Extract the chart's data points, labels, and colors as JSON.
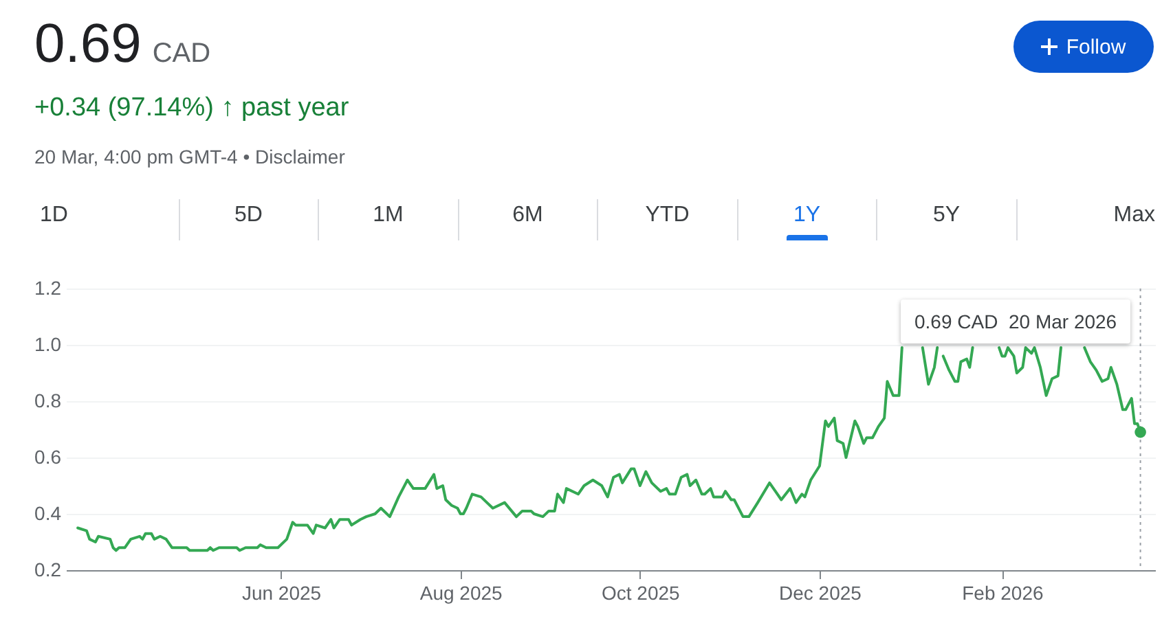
{
  "chart_data": {
    "type": "line",
    "title": "0.69 CAD",
    "subtitle": "+0.34 (97.14%) ↑ past year",
    "annotations": [
      "20 Mar, 4:00 pm GMT-4 • Disclaimer",
      "1D",
      "5D",
      "1M",
      "6M",
      "YTD",
      "1Y",
      "5Y",
      "Max",
      "Follow",
      "0.69 CAD  20 Mar 2026"
    ],
    "x": [
      "2025-03-24",
      "2025-03-27",
      "2025-03-28",
      "2025-03-30",
      "2025-03-31",
      "2025-04-04",
      "2025-04-05",
      "2025-04-06",
      "2025-04-07",
      "2025-04-09",
      "2025-04-11",
      "2025-04-14",
      "2025-04-15",
      "2025-04-16",
      "2025-04-18",
      "2025-04-19",
      "2025-04-21",
      "2025-04-23",
      "2025-04-25",
      "2025-04-30",
      "2025-05-01",
      "2025-05-07",
      "2025-05-08",
      "2025-05-09",
      "2025-05-11",
      "2025-05-17",
      "2025-05-18",
      "2025-05-20",
      "2025-05-24",
      "2025-05-25",
      "2025-05-27",
      "2025-05-31",
      "2025-06-03",
      "2025-06-05",
      "2025-06-06",
      "2025-06-10",
      "2025-06-12",
      "2025-06-13",
      "2025-06-16",
      "2025-06-18",
      "2025-06-19",
      "2025-06-21",
      "2025-06-24",
      "2025-06-25",
      "2025-06-28",
      "2025-06-30",
      "2025-07-03",
      "2025-07-05",
      "2025-07-08",
      "2025-07-11",
      "2025-07-14",
      "2025-07-16",
      "2025-07-20",
      "2025-07-23",
      "2025-07-24",
      "2025-07-26",
      "2025-07-27",
      "2025-07-29",
      "2025-07-31",
      "2025-08-01",
      "2025-08-02",
      "2025-08-03",
      "2025-08-05",
      "2025-08-08",
      "2025-08-10",
      "2025-08-12",
      "2025-08-16",
      "2025-08-20",
      "2025-08-22",
      "2025-08-25",
      "2025-08-26",
      "2025-08-29",
      "2025-08-31",
      "2025-09-02",
      "2025-09-03",
      "2025-09-05",
      "2025-09-06",
      "2025-09-10",
      "2025-09-12",
      "2025-09-15",
      "2025-09-18",
      "2025-09-20",
      "2025-09-22",
      "2025-09-24",
      "2025-09-25",
      "2025-09-28",
      "2025-09-29",
      "2025-10-01",
      "2025-10-03",
      "2025-10-05",
      "2025-10-08",
      "2025-10-10",
      "2025-10-11",
      "2025-10-13",
      "2025-10-15",
      "2025-10-17",
      "2025-10-18",
      "2025-10-20",
      "2025-10-22",
      "2025-10-23",
      "2025-10-25",
      "2025-10-26",
      "2025-10-29",
      "2025-10-30",
      "2025-11-01",
      "2025-11-02",
      "2025-11-05",
      "2025-11-07",
      "2025-11-10",
      "2025-11-14",
      "2025-11-16",
      "2025-11-18",
      "2025-11-21",
      "2025-11-23",
      "2025-11-25",
      "2025-11-26",
      "2025-11-28",
      "2025-12-01",
      "2025-12-03",
      "2025-12-04",
      "2025-12-06",
      "2025-12-07",
      "2025-12-09",
      "2025-12-10",
      "2025-12-13",
      "2025-12-14",
      "2025-12-16",
      "2025-12-17",
      "2025-12-19",
      "2025-12-21",
      "2025-12-23",
      "2025-12-24",
      "2025-12-26",
      "2025-12-28",
      "2025-12-29",
      "2025-12-31",
      "2026-01-05",
      "2026-01-07",
      "2026-01-09",
      "2026-01-10",
      "2026-01-11",
      "2026-01-12",
      "2026-01-14",
      "2026-01-16",
      "2026-01-17",
      "2026-01-18",
      "2026-01-20",
      "2026-01-21",
      "2026-01-22",
      "2026-01-26",
      "2026-01-31",
      "2026-02-01",
      "2026-02-02",
      "2026-02-03",
      "2026-02-05",
      "2026-02-06",
      "2026-02-08",
      "2026-02-09",
      "2026-02-11",
      "2026-02-12",
      "2026-02-14",
      "2026-02-16",
      "2026-02-18",
      "2026-02-20",
      "2026-02-21",
      "2026-02-25",
      "2026-03-01",
      "2026-03-03",
      "2026-03-05",
      "2026-03-07",
      "2026-03-09",
      "2026-03-10",
      "2026-03-12",
      "2026-03-14",
      "2026-03-15",
      "2026-03-17",
      "2026-03-18",
      "2026-03-19",
      "2026-03-20"
    ],
    "series": [
      {
        "color": "#34a853",
        "values": [
          0.35,
          0.34,
          0.31,
          0.3,
          0.32,
          0.31,
          0.28,
          0.27,
          0.28,
          0.28,
          0.31,
          0.32,
          0.31,
          0.33,
          0.33,
          0.31,
          0.32,
          0.31,
          0.28,
          0.28,
          0.27,
          0.27,
          0.28,
          0.27,
          0.28,
          0.28,
          0.27,
          0.28,
          0.28,
          0.29,
          0.28,
          0.28,
          0.31,
          0.37,
          0.36,
          0.36,
          0.33,
          0.36,
          0.35,
          0.38,
          0.35,
          0.38,
          0.38,
          0.36,
          0.38,
          0.39,
          0.4,
          0.42,
          0.39,
          0.46,
          0.52,
          0.49,
          0.49,
          0.54,
          0.49,
          0.5,
          0.45,
          0.43,
          0.42,
          0.4,
          0.4,
          0.42,
          0.47,
          0.46,
          0.44,
          0.42,
          0.44,
          0.39,
          0.41,
          0.41,
          0.4,
          0.39,
          0.41,
          0.41,
          0.47,
          0.44,
          0.49,
          0.47,
          0.5,
          0.52,
          0.5,
          0.46,
          0.53,
          0.54,
          0.51,
          0.56,
          0.56,
          0.5,
          0.55,
          0.51,
          0.48,
          0.49,
          0.47,
          0.47,
          0.53,
          0.54,
          0.5,
          0.52,
          0.47,
          0.47,
          0.49,
          0.46,
          0.46,
          0.48,
          0.45,
          0.45,
          0.39,
          0.39,
          0.44,
          0.51,
          0.48,
          0.45,
          0.49,
          0.44,
          0.47,
          0.46,
          0.52,
          0.57,
          0.73,
          0.71,
          0.74,
          0.66,
          0.65,
          0.6,
          0.73,
          0.71,
          0.65,
          0.67,
          0.67,
          0.71,
          0.74,
          0.87,
          0.82,
          0.82,
          0.99,
          null,
          0.99,
          0.86,
          0.92,
          0.99,
          null,
          0.96,
          0.91,
          0.87,
          0.87,
          0.94,
          0.95,
          0.92,
          0.99,
          null,
          0.99,
          0.96,
          0.96,
          0.99,
          0.96,
          0.9,
          0.92,
          0.99,
          0.97,
          0.99,
          0.92,
          0.82,
          0.88,
          0.89,
          0.99,
          null,
          0.99,
          0.94,
          0.91,
          0.87,
          0.88,
          0.92,
          0.86,
          0.77,
          0.77,
          0.81,
          0.72,
          0.72,
          0.69
        ]
      }
    ],
    "xlim": [
      "2025-03-20",
      "2026-03-25"
    ],
    "xticks": [
      {
        "value": "2025-06-01",
        "label": "Jun 2025"
      },
      {
        "value": "2025-08-01",
        "label": "Aug 2025"
      },
      {
        "value": "2025-10-01",
        "label": "Oct 2025"
      },
      {
        "value": "2025-12-01",
        "label": "Dec 2025"
      },
      {
        "value": "2026-02-01",
        "label": "Feb 2026"
      }
    ],
    "ylim": [
      0.2,
      1.2
    ],
    "yticks": [
      {
        "value": 0.2,
        "label": "0.2"
      },
      {
        "value": 0.4,
        "label": "0.4"
      },
      {
        "value": 0.6,
        "label": "0.6"
      },
      {
        "value": 0.8,
        "label": "0.8"
      },
      {
        "value": 1.0,
        "label": "1.0"
      },
      {
        "value": 1.2,
        "label": "1.2"
      }
    ],
    "grid": "y",
    "ref_lines": [
      {
        "axis": "x",
        "value": "2026-03-20",
        "color": "#9aa0a6",
        "line_style": "dotted"
      }
    ]
  }
}
